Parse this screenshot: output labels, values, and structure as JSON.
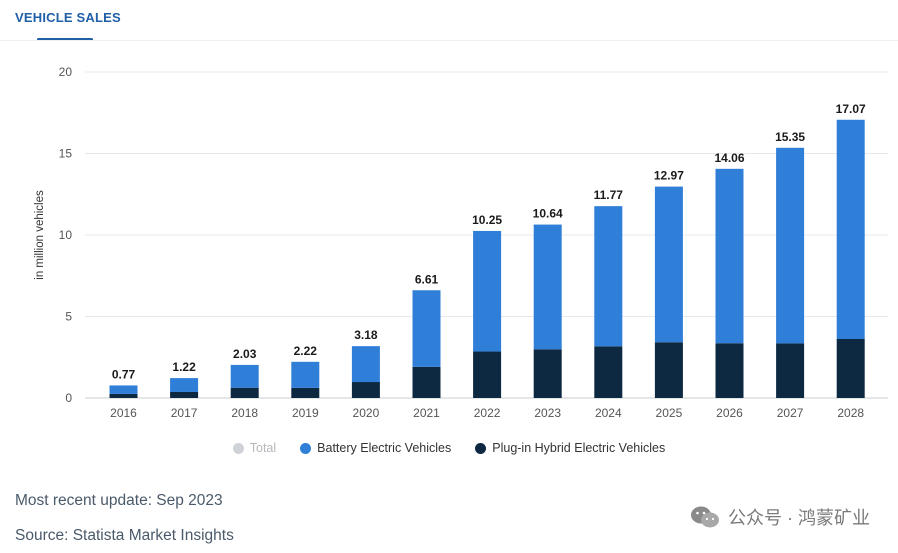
{
  "header": {
    "tab_label": "VEHICLE SALES"
  },
  "chart_data": {
    "type": "bar",
    "stacked": true,
    "categories": [
      "2016",
      "2017",
      "2018",
      "2019",
      "2020",
      "2021",
      "2022",
      "2023",
      "2024",
      "2025",
      "2026",
      "2027",
      "2028"
    ],
    "series": [
      {
        "name": "Total",
        "color": "#cfd2d6",
        "values": [
          0.77,
          1.22,
          2.03,
          2.22,
          3.18,
          6.61,
          10.25,
          10.64,
          11.77,
          12.97,
          14.06,
          15.35,
          17.07
        ]
      },
      {
        "name": "Battery Electric Vehicles",
        "color": "#2f7ed8",
        "values": [
          0.52,
          0.85,
          1.4,
          1.6,
          2.2,
          4.7,
          7.4,
          7.65,
          8.6,
          9.55,
          10.7,
          12.0,
          13.45
        ]
      },
      {
        "name": "Plug-in Hybrid Electric Vehicles",
        "color": "#0d2841",
        "values": [
          0.25,
          0.37,
          0.63,
          0.62,
          0.98,
          1.91,
          2.85,
          2.99,
          3.17,
          3.42,
          3.36,
          3.35,
          3.62
        ]
      }
    ],
    "data_labels": [
      "0.77",
      "1.22",
      "2.03",
      "2.22",
      "3.18",
      "6.61",
      "10.25",
      "10.64",
      "11.77",
      "12.97",
      "14.06",
      "15.35",
      "17.07"
    ],
    "ylabel": "in million vehicles",
    "ylim": [
      0,
      20
    ],
    "yticks": [
      0,
      5,
      10,
      15,
      20
    ],
    "grid": true,
    "legend_position": "bottom"
  },
  "footer": {
    "update": "Most recent update: Sep 2023",
    "source": "Source: Statista Market Insights"
  },
  "watermark": {
    "text": "公众号 · 鸿蒙矿业",
    "icon": "wechat-icon"
  }
}
